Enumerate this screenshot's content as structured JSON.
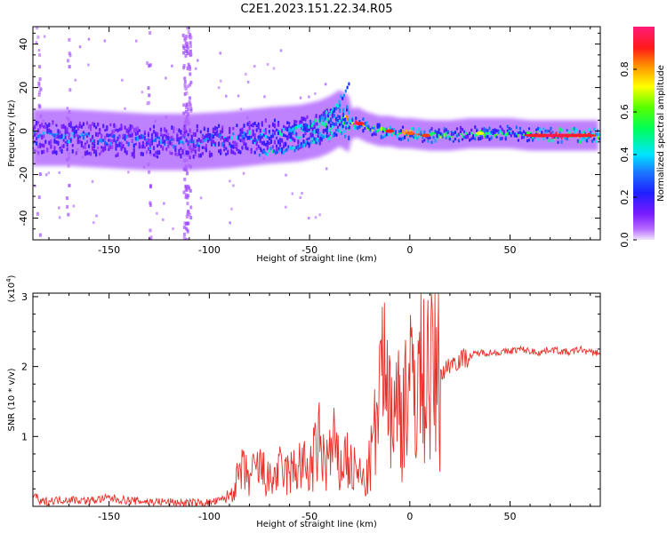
{
  "title": "C2E1.2023.151.22.34.R05",
  "colorbar": {
    "label": "Normalized spectral amplitude",
    "ticks": [
      0.0,
      0.2,
      0.4,
      0.6,
      0.8
    ],
    "tick_labels": [
      "0.0",
      "0.2",
      "0.4",
      "0.6",
      "0.8"
    ]
  },
  "chart_data": [
    {
      "type": "heatmap",
      "title": "",
      "xlabel": "Height of straight line (km)",
      "ylabel": "Frequency (Hz)",
      "xlim": [
        -188,
        95
      ],
      "ylim": [
        -50,
        48
      ],
      "xticks": [
        -150,
        -100,
        -50,
        0,
        50
      ],
      "xtick_labels": [
        "-150",
        "-100",
        "-50",
        "0",
        "50"
      ],
      "yticks": [
        -40,
        -20,
        0,
        20,
        40
      ],
      "ytick_labels": [
        "-40",
        "-20",
        "0",
        "20",
        "40"
      ],
      "colorscale": "rainbow (violet = 0, red = 1)",
      "ridge": {
        "x": [
          -188,
          -170,
          -150,
          -130,
          -110,
          -90,
          -70,
          -55,
          -45,
          -40,
          -35,
          -30,
          -26,
          -22,
          -15,
          -10,
          -5,
          0,
          10,
          20,
          30,
          40,
          50,
          60,
          70,
          80,
          90,
          95
        ],
        "freq": [
          -3,
          -3,
          -4,
          -5,
          -5,
          -4,
          -2,
          -1,
          1,
          3,
          6,
          3,
          4,
          2,
          0,
          0,
          -1,
          -1,
          -2,
          -2,
          -1,
          -1,
          -1,
          -2,
          -2,
          -2,
          -2,
          -2
        ],
        "amplitude": [
          0.3,
          0.35,
          0.3,
          0.3,
          0.32,
          0.35,
          0.4,
          0.4,
          0.45,
          0.5,
          0.55,
          0.75,
          0.95,
          0.6,
          0.55,
          0.9,
          0.6,
          0.85,
          0.6,
          0.55,
          0.5,
          0.55,
          0.5,
          0.55,
          0.9,
          0.95,
          0.9,
          0.5
        ]
      },
      "upper_branch": {
        "x": [
          -60,
          -50,
          -45,
          -40,
          -35,
          -30
        ],
        "freq": [
          0,
          3,
          5,
          9,
          14,
          21
        ]
      },
      "lower_branch": {
        "x": [
          -75,
          -65,
          -55,
          -45,
          -40,
          -35,
          -30
        ],
        "freq": [
          -10,
          -9,
          -7,
          -4,
          -2,
          0,
          2
        ]
      },
      "vertical_streaks_x": [
        -112,
        -110,
        -130,
        -170,
        -185
      ]
    },
    {
      "type": "line",
      "title": "",
      "xlabel": "Height of straight line (km)",
      "ylabel": "SNR (10 * v/v)",
      "scale_note": "(x10^4)",
      "scale_prefix": "(x10",
      "scale_exp": "4",
      "scale_suffix": ")",
      "xlim": [
        -188,
        95
      ],
      "ylim": [
        0,
        3.05
      ],
      "xticks": [
        -150,
        -100,
        -50,
        0,
        50
      ],
      "xtick_labels": [
        "-150",
        "-100",
        "-50",
        "0",
        "50"
      ],
      "yticks": [
        1,
        2,
        3
      ],
      "ytick_labels": [
        "1",
        "2",
        "3"
      ],
      "color": "#e8302a",
      "series": [
        {
          "x": [
            -188,
            -187,
            -185,
            -180,
            -170,
            -160,
            -150,
            -140,
            -130,
            -120,
            -110,
            -100,
            -95,
            -90,
            -87,
            -84,
            -80,
            -75,
            -70,
            -65,
            -60,
            -55,
            -50,
            -45,
            -42,
            -38,
            -35,
            -32,
            -30,
            -28,
            -25,
            -22,
            -20,
            -18,
            -16,
            -14,
            -13,
            -12,
            -11,
            -10,
            -8,
            -6,
            -4,
            -2,
            0,
            2,
            4,
            6,
            8,
            10,
            12,
            15,
            18,
            20,
            25,
            30,
            35,
            40,
            45,
            50,
            55,
            60,
            65,
            70,
            75,
            80,
            85,
            90,
            95
          ],
          "y": [
            0.1,
            0.2,
            0.05,
            0.08,
            0.1,
            0.08,
            0.12,
            0.08,
            0.07,
            0.06,
            0.05,
            0.05,
            0.08,
            0.15,
            0.3,
            0.5,
            0.4,
            0.55,
            0.35,
            0.5,
            0.45,
            0.6,
            0.5,
            0.9,
            0.6,
            0.85,
            0.5,
            0.75,
            0.55,
            0.5,
            0.45,
            0.3,
            0.6,
            0.9,
            1.3,
            1.5,
            2.0,
            3.05,
            1.0,
            1.9,
            1.2,
            1.5,
            1.3,
            1.8,
            1.6,
            1.75,
            1.9,
            1.8,
            1.95,
            2.0,
            1.85,
            1.9,
            1.95,
            2.05,
            2.1,
            2.15,
            2.2,
            2.2,
            2.2,
            2.22,
            2.25,
            2.22,
            2.2,
            2.25,
            2.22,
            2.2,
            2.25,
            2.2,
            2.2
          ]
        }
      ]
    }
  ]
}
